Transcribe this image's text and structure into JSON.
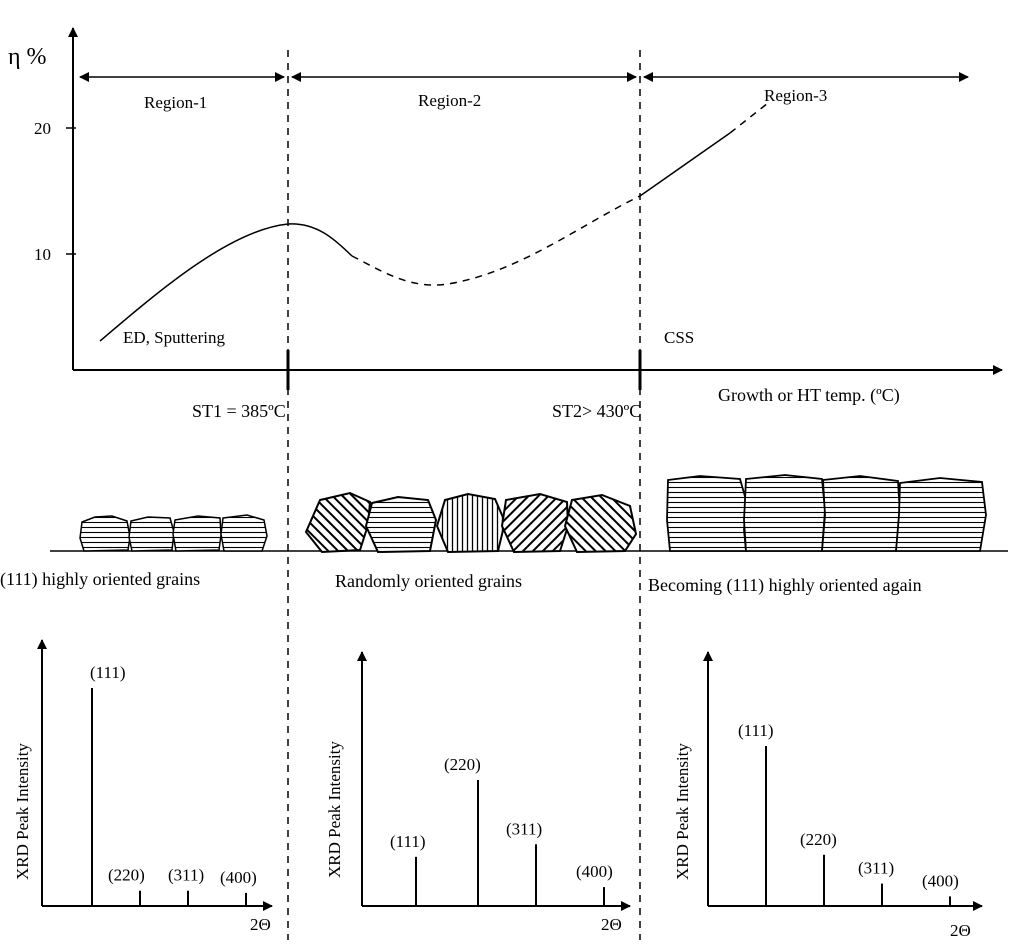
{
  "main_chart": {
    "y_axis_label": "η %",
    "y_ticks": [
      "20",
      "10"
    ],
    "x_axis_label": "Growth or HT temp. (ºC)",
    "regions": [
      "Region-1",
      "Region-2",
      "Region-3"
    ],
    "annotations": {
      "region1_methods": "ED, Sputtering",
      "region3_method": "CSS"
    },
    "transitions": {
      "st1": "ST1 = 385ºC",
      "st2": "ST2> 430ºC"
    }
  },
  "grain_labels": {
    "region1": "(111) highly oriented grains",
    "region2": "Randomly oriented grains",
    "region3": "Becoming (111) highly oriented again"
  },
  "chart_data": [
    {
      "type": "bar",
      "ylabel": "XRD Peak Intensity",
      "xlabel": "2Θ",
      "categories": [
        "(111)",
        "(220)",
        "(311)",
        "(400)"
      ],
      "values": [
        100,
        7,
        7,
        6
      ]
    },
    {
      "type": "bar",
      "ylabel": "XRD Peak Intensity",
      "xlabel": "2Θ",
      "categories": [
        "(111)",
        "(220)",
        "(311)",
        "(400)"
      ],
      "values": [
        39,
        100,
        49,
        15
      ]
    },
    {
      "type": "bar",
      "ylabel": "XRD Peak Intensity",
      "xlabel": "2Θ",
      "categories": [
        "(111)",
        "(220)",
        "(311)",
        "(400)"
      ],
      "values": [
        100,
        32,
        14,
        6
      ]
    }
  ]
}
